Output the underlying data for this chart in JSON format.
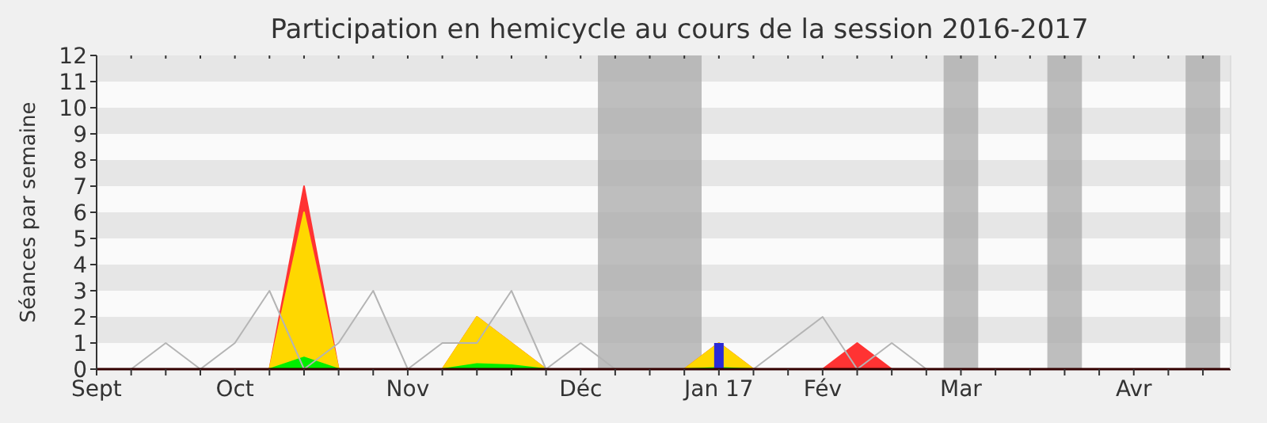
{
  "chart_data": {
    "type": "area",
    "title": "Participation en hemicycle au cours de la session 2016-2017",
    "ylabel": "Séances par semaine",
    "categories": [
      "Sept",
      null,
      null,
      null,
      "Oct",
      null,
      null,
      null,
      null,
      "Nov",
      null,
      null,
      null,
      null,
      "Déc",
      null,
      null,
      null,
      "Jan 17",
      null,
      null,
      "Fév",
      null,
      null,
      null,
      "Mar",
      null,
      null,
      null,
      null,
      "Avr",
      null,
      null
    ],
    "series": [
      {
        "type": "line",
        "color": "#b4b4b4",
        "values": [
          0,
          0,
          1,
          0,
          1,
          3,
          0,
          1,
          3,
          0,
          1,
          1,
          3,
          0,
          1,
          0,
          0,
          0,
          0,
          0,
          1,
          2,
          0,
          1,
          0,
          null,
          null,
          null,
          null,
          null,
          null,
          null,
          null
        ]
      },
      {
        "color": "#ff3333",
        "values": [
          0,
          0,
          0,
          0,
          0,
          0,
          7,
          0,
          0,
          0,
          0,
          2,
          1,
          0,
          0,
          0,
          0,
          0,
          1,
          0,
          0,
          0,
          1,
          0,
          0,
          0,
          0,
          0,
          0,
          0,
          0,
          0,
          0
        ]
      },
      {
        "color": "#ffd700",
        "values": [
          0,
          0,
          0,
          0,
          0,
          0,
          6,
          0,
          0,
          0,
          0,
          2,
          1,
          0,
          0,
          0,
          0,
          0,
          1,
          0,
          0,
          0,
          0,
          0,
          0,
          0,
          0,
          0,
          0,
          0,
          0,
          0,
          0
        ]
      },
      {
        "color": "#00ee00",
        "values": [
          0,
          0,
          0,
          0,
          0,
          0,
          0.45,
          0,
          0,
          0,
          0,
          0.2,
          0.15,
          0,
          0,
          0,
          0,
          0,
          0.05,
          0,
          0,
          0,
          0,
          0,
          0,
          0,
          0,
          0,
          0,
          0,
          0,
          0,
          0
        ]
      },
      {
        "type": "bar",
        "color": "#2a2ad6",
        "values": [
          0,
          0,
          0,
          0,
          0,
          0,
          0,
          0,
          0,
          0,
          0,
          0,
          0,
          0,
          0,
          0,
          0,
          0,
          1,
          0,
          0,
          0,
          0,
          0,
          0,
          0,
          0,
          0,
          0,
          0,
          0,
          0,
          0
        ]
      }
    ],
    "ylim": [
      0,
      12
    ],
    "yticks": [
      0,
      1,
      2,
      3,
      4,
      5,
      6,
      7,
      8,
      9,
      10,
      11,
      12
    ]
  }
}
